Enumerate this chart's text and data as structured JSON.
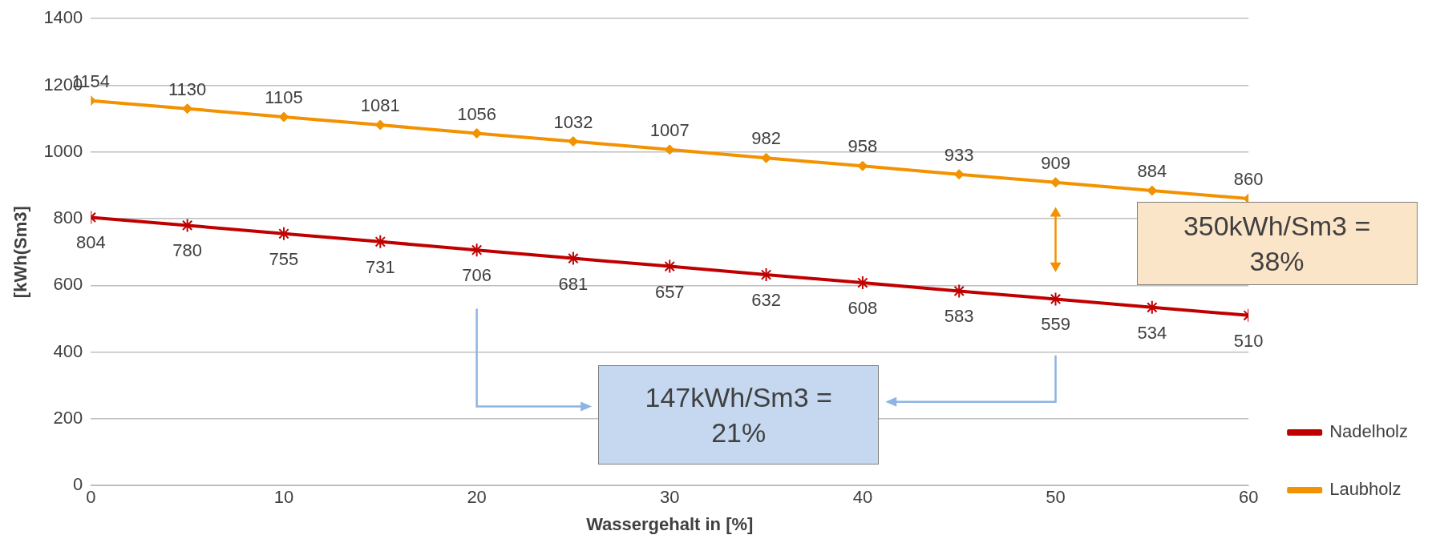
{
  "chart_data": {
    "type": "line",
    "xlabel": "Wassergehalt in [%]",
    "ylabel": "[kWh(Sm3]",
    "x": [
      0,
      5,
      10,
      15,
      20,
      25,
      30,
      35,
      40,
      45,
      50,
      55,
      60
    ],
    "series": [
      {
        "name": "Nadelholz",
        "color": "#c00000",
        "marker": "cross",
        "values": [
          804,
          780,
          755,
          731,
          706,
          681,
          657,
          632,
          608,
          583,
          559,
          534,
          510
        ]
      },
      {
        "name": "Laubholz",
        "color": "#f39200",
        "marker": "diamond",
        "values": [
          1154,
          1130,
          1105,
          1081,
          1056,
          1032,
          1007,
          982,
          958,
          933,
          909,
          884,
          860
        ]
      }
    ],
    "xlim": [
      0,
      60
    ],
    "xticks": [
      0,
      10,
      20,
      30,
      40,
      50,
      60
    ],
    "ylim": [
      0,
      1400
    ],
    "yticks": [
      0,
      200,
      400,
      600,
      800,
      1000,
      1200,
      1400
    ],
    "grid": "y",
    "legend": "right",
    "data_labels": true,
    "line_style": "solid",
    "annotations": [
      "350kWh/Sm3 = 38%",
      "147kWh/Sm3 = 21%"
    ]
  }
}
